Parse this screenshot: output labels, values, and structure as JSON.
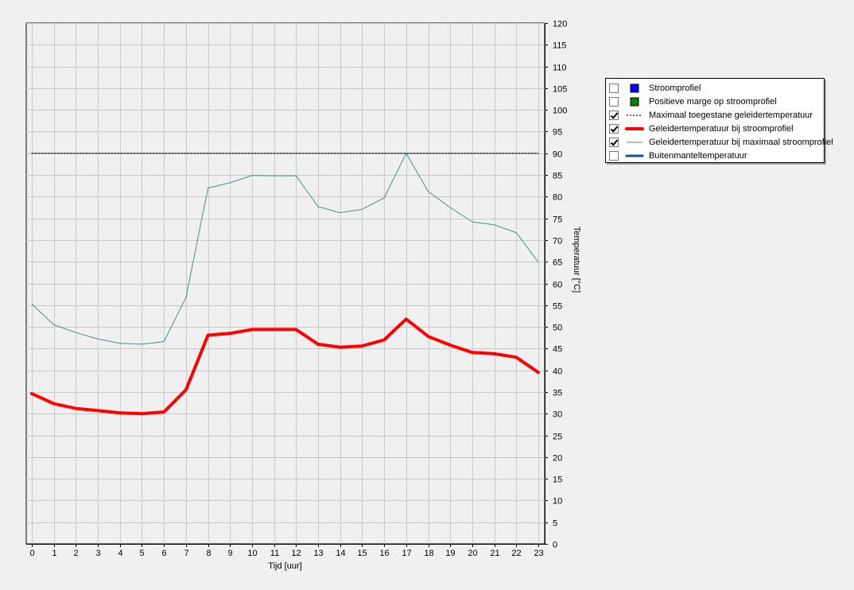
{
  "chart_data": {
    "type": "line",
    "xlabel": "Tijd [uur]",
    "ylabel": "Temperatuur [°C]",
    "x": [
      0,
      1,
      2,
      3,
      4,
      5,
      6,
      7,
      8,
      9,
      10,
      11,
      12,
      13,
      14,
      15,
      16,
      17,
      18,
      19,
      20,
      21,
      22,
      23
    ],
    "xlim": [
      0,
      23
    ],
    "ylim": [
      0,
      120
    ],
    "yticks": [
      0,
      5,
      10,
      15,
      20,
      25,
      30,
      35,
      40,
      45,
      50,
      55,
      60,
      65,
      70,
      75,
      80,
      85,
      90,
      95,
      100,
      105,
      110,
      115,
      120
    ],
    "y_axis_side": "right",
    "grid": true,
    "legend_position": "right",
    "series": [
      {
        "name": "Maximaal toegestane geleidertemperatuur",
        "color": "#404040",
        "style": "dotted",
        "values": [
          90,
          90,
          90,
          90,
          90,
          90,
          90,
          90,
          90,
          90,
          90,
          90,
          90,
          90,
          90,
          90,
          90,
          90,
          90,
          90,
          90,
          90,
          90,
          90
        ]
      },
      {
        "name": "Geleidertemperatuur bij stroomprofiel",
        "color": "#ff0000",
        "style": "thick",
        "values": [
          34.6,
          32.3,
          31.2,
          30.7,
          30.2,
          30.0,
          30.4,
          35.5,
          48.1,
          48.5,
          49.4,
          49.4,
          49.4,
          46.0,
          45.3,
          45.6,
          47.0,
          51.8,
          47.8,
          45.8,
          44.1,
          43.8,
          43.0,
          39.5
        ]
      },
      {
        "name": "Geleidertemperatuur bij maximaal stroomprofiel",
        "color": "#4f8b8b",
        "style": "thin",
        "values": [
          55.3,
          50.5,
          48.7,
          47.2,
          46.2,
          46.0,
          46.6,
          56.8,
          82.0,
          83.2,
          84.9,
          84.8,
          84.8,
          77.7,
          76.3,
          77.1,
          79.7,
          90.0,
          81.2,
          77.5,
          74.2,
          73.5,
          71.7,
          64.9
        ]
      }
    ]
  },
  "legend": {
    "items": [
      {
        "label": "Stroomprofiel",
        "checked": false,
        "swatch": "box",
        "color": "#0000ff"
      },
      {
        "label": "Positieve marge op stroomprofiel",
        "checked": false,
        "swatch": "box",
        "color": "#008000"
      },
      {
        "label": "Maximaal toegestane geleidertemperatuur",
        "checked": true,
        "swatch": "dotted",
        "color": "#404040"
      },
      {
        "label": "Geleidertemperatuur bij stroomprofiel",
        "checked": true,
        "swatch": "thick",
        "color": "#ff0000"
      },
      {
        "label": "Geleidertemperatuur bij maximaal stroomprofiel",
        "checked": true,
        "swatch": "thin",
        "color": "#4f8b8b"
      },
      {
        "label": "Buitenmanteltemperatuur",
        "checked": false,
        "swatch": "medium",
        "color": "#1f4e8c"
      }
    ]
  }
}
